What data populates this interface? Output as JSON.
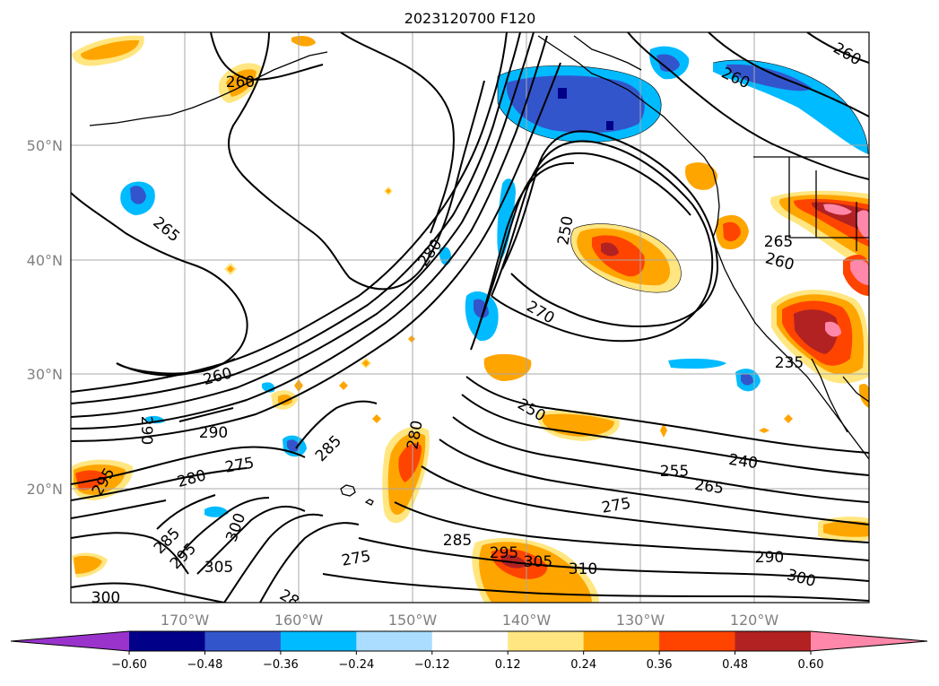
{
  "title": "2023120700 F120",
  "lat_labels": [
    "50°N",
    "40°N",
    "30°N",
    "20°N"
  ],
  "lon_labels": [
    "170°W",
    "160°W",
    "150°W",
    "140°W",
    "130°W",
    "120°W"
  ],
  "colorbar": {
    "ticks": [
      "−0.60",
      "−0.48",
      "−0.36",
      "−0.24",
      "−0.12",
      "0.12",
      "0.24",
      "0.36",
      "0.48",
      "0.60"
    ],
    "colors": [
      "#9933cc",
      "#000088",
      "#3355cc",
      "#00bbff",
      "#aaddff",
      "#ffffff",
      "#ffe680",
      "#ffa500",
      "#ff4400",
      "#b22222",
      "#ff88aa"
    ],
    "extend": "both"
  },
  "contour_labels": [
    "260",
    "265",
    "280",
    "250",
    "270",
    "265",
    "260",
    "260",
    "260",
    "235",
    "260",
    "290",
    "290",
    "285",
    "280",
    "250",
    "255",
    "240",
    "265",
    "275",
    "295",
    "280",
    "275",
    "300",
    "285",
    "295",
    "305",
    "275",
    "285",
    "295",
    "305",
    "310",
    "290",
    "300",
    "300",
    "28"
  ]
}
